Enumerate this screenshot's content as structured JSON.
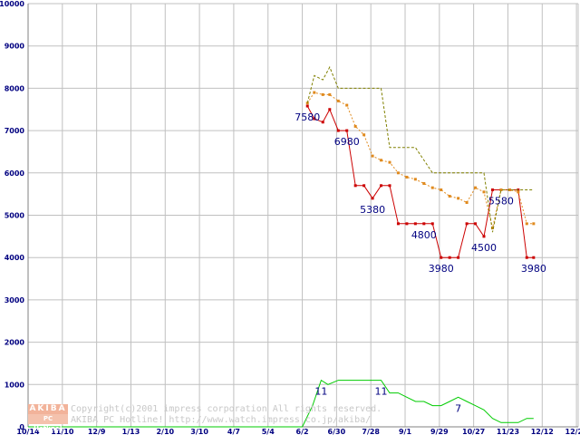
{
  "chart_data": {
    "type": "line",
    "title": "",
    "xlabel": "",
    "ylabel": "",
    "ylim": [
      0,
      10000
    ],
    "y_ticks": [
      0,
      1000,
      2000,
      3000,
      4000,
      5000,
      6000,
      7000,
      8000,
      9000,
      10000
    ],
    "x_tick_labels": [
      "10/14",
      "11/10",
      "12/9",
      "1/13",
      "2/10",
      "3/10",
      "4/7",
      "5/4",
      "6/2",
      "6/30",
      "7/28",
      "9/1",
      "9/29",
      "10/27",
      "11/23",
      "12/12",
      "12/28"
    ],
    "grid": true,
    "legend": "none",
    "series": [
      {
        "color": "#cc0000",
        "markers": true,
        "dash": "",
        "values": [
          [
            8.15,
            7580
          ],
          [
            8.35,
            7280
          ],
          [
            8.6,
            7200
          ],
          [
            8.8,
            7500
          ],
          [
            9.05,
            7000
          ],
          [
            9.3,
            7000
          ],
          [
            9.55,
            5700
          ],
          [
            9.8,
            5700
          ],
          [
            10.05,
            5400
          ],
          [
            10.3,
            5700
          ],
          [
            10.55,
            5700
          ],
          [
            10.8,
            4800
          ],
          [
            11.05,
            4800
          ],
          [
            11.3,
            4800
          ],
          [
            11.55,
            4800
          ],
          [
            11.8,
            4800
          ],
          [
            12.05,
            4000
          ],
          [
            12.3,
            4000
          ],
          [
            12.55,
            4000
          ],
          [
            12.8,
            4800
          ],
          [
            13.05,
            4800
          ],
          [
            13.3,
            4500
          ],
          [
            13.55,
            5600
          ],
          [
            13.8,
            5600
          ],
          [
            14.05,
            5600
          ],
          [
            14.3,
            5600
          ],
          [
            14.55,
            4000
          ],
          [
            14.75,
            4000
          ]
        ]
      },
      {
        "color": "#e08a1e",
        "markers": true,
        "dash": "2,2",
        "values": [
          [
            8.15,
            7650
          ],
          [
            8.35,
            7900
          ],
          [
            8.6,
            7850
          ],
          [
            8.8,
            7850
          ],
          [
            9.05,
            7700
          ],
          [
            9.3,
            7600
          ],
          [
            9.55,
            7100
          ],
          [
            9.8,
            6900
          ],
          [
            10.05,
            6400
          ],
          [
            10.3,
            6300
          ],
          [
            10.55,
            6250
          ],
          [
            10.8,
            6000
          ],
          [
            11.05,
            5900
          ],
          [
            11.3,
            5850
          ],
          [
            11.55,
            5750
          ],
          [
            11.8,
            5650
          ],
          [
            12.05,
            5600
          ],
          [
            12.3,
            5450
          ],
          [
            12.55,
            5400
          ],
          [
            12.8,
            5300
          ],
          [
            13.05,
            5650
          ],
          [
            13.3,
            5550
          ],
          [
            13.55,
            4700
          ],
          [
            13.8,
            5600
          ],
          [
            14.05,
            5600
          ],
          [
            14.3,
            5550
          ],
          [
            14.55,
            4800
          ],
          [
            14.75,
            4800
          ]
        ]
      },
      {
        "color": "#808000",
        "markers": false,
        "dash": "3,2",
        "values": [
          [
            8.15,
            7650
          ],
          [
            8.35,
            8300
          ],
          [
            8.6,
            8200
          ],
          [
            8.8,
            8500
          ],
          [
            9.05,
            8000
          ],
          [
            9.55,
            8000
          ],
          [
            10.3,
            8000
          ],
          [
            10.55,
            6600
          ],
          [
            11.3,
            6600
          ],
          [
            11.8,
            6000
          ],
          [
            13.3,
            6000
          ],
          [
            13.55,
            4600
          ],
          [
            13.8,
            5600
          ],
          [
            14.3,
            5600
          ],
          [
            14.55,
            5600
          ],
          [
            14.75,
            5600
          ]
        ]
      },
      {
        "color": "#00cc00",
        "markers": false,
        "dash": "",
        "values": [
          [
            0,
            0
          ],
          [
            8.0,
            0
          ],
          [
            8.3,
            500
          ],
          [
            8.55,
            1100
          ],
          [
            8.75,
            1000
          ],
          [
            9.05,
            1100
          ],
          [
            9.55,
            1100
          ],
          [
            10.3,
            1100
          ],
          [
            10.55,
            800
          ],
          [
            10.8,
            800
          ],
          [
            11.05,
            700
          ],
          [
            11.3,
            600
          ],
          [
            11.55,
            600
          ],
          [
            11.8,
            500
          ],
          [
            12.05,
            500
          ],
          [
            12.3,
            600
          ],
          [
            12.55,
            700
          ],
          [
            12.8,
            600
          ],
          [
            13.05,
            500
          ],
          [
            13.3,
            400
          ],
          [
            13.55,
            200
          ],
          [
            13.8,
            100
          ],
          [
            14.05,
            100
          ],
          [
            14.3,
            100
          ],
          [
            14.55,
            200
          ],
          [
            14.75,
            200
          ]
        ]
      }
    ],
    "annotations": [
      {
        "text": "7580",
        "x": 8.15,
        "y": 7580
      },
      {
        "text": "6980",
        "x": 9.3,
        "y": 7000
      },
      {
        "text": "5380",
        "x": 10.05,
        "y": 5400
      },
      {
        "text": "4800",
        "x": 11.55,
        "y": 4800
      },
      {
        "text": "3980",
        "x": 12.05,
        "y": 4000
      },
      {
        "text": "4500",
        "x": 13.3,
        "y": 4500
      },
      {
        "text": "5580",
        "x": 13.8,
        "y": 5600
      },
      {
        "text": "3980",
        "x": 14.75,
        "y": 4000
      },
      {
        "text": "11",
        "x": 8.55,
        "y": 1100
      },
      {
        "text": "11",
        "x": 10.3,
        "y": 1100
      },
      {
        "text": "7",
        "x": 12.55,
        "y": 700
      }
    ]
  },
  "watermark": {
    "logo_top": "AKIBA",
    "logo_bottom": "PC Hotline!",
    "line1": "Copyright(c)2001 impress corporation All rights reserved.",
    "line2": "AKIBA PC Hotline!  http://www.watch.impress.co.jp/akiba/"
  }
}
